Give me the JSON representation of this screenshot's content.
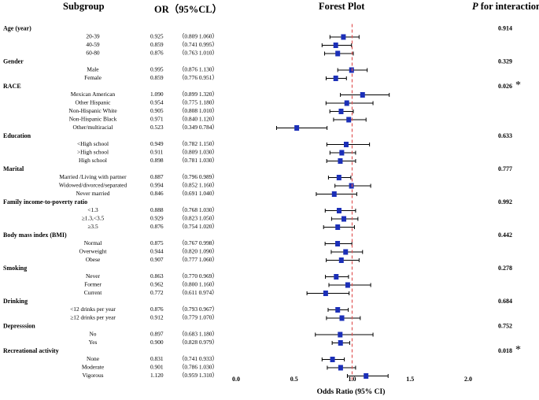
{
  "header": {
    "subgroup": "Subgroup",
    "or_ci": "OR（95%CL）",
    "forest": "Forest Plot",
    "p_symbol": "P",
    "p_rest": "for interaction"
  },
  "chart_data": {
    "type": "forest",
    "xlabel": "Odds Ratio (95% CI)",
    "xlim": [
      0.0,
      2.0
    ],
    "ticks": [
      "0.0",
      "0.5",
      "1.0",
      "1.5",
      "2.0"
    ],
    "reference_line": 1.0,
    "groups": [
      {
        "name": "Age (year)",
        "p": "0.914",
        "star": "",
        "rows": [
          {
            "label": "20-39",
            "or": "0.925",
            "ci": "（0.809  1.060）",
            "est": 0.925,
            "lo": 0.809,
            "hi": 1.06
          },
          {
            "label": "40-59",
            "or": "0.859",
            "ci": "（0.741  0.995）",
            "est": 0.859,
            "lo": 0.741,
            "hi": 0.995
          },
          {
            "label": "60-80",
            "or": "0.876",
            "ci": "（0.763  1.010）",
            "est": 0.876,
            "lo": 0.763,
            "hi": 1.01
          }
        ]
      },
      {
        "name": "Gender",
        "p": "0.329",
        "star": "",
        "rows": [
          {
            "label": "Male",
            "or": "0.995",
            "ci": "（0.876  1.130）",
            "est": 0.995,
            "lo": 0.876,
            "hi": 1.13
          },
          {
            "label": "Female",
            "or": "0.859",
            "ci": "（0.776  0.951）",
            "est": 0.859,
            "lo": 0.776,
            "hi": 0.951
          }
        ]
      },
      {
        "name": "RACE",
        "p": "0.026",
        "star": "*",
        "rows": [
          {
            "label": "Mexican American",
            "or": "1.090",
            "ci": "（0.899  1.320）",
            "est": 1.09,
            "lo": 0.899,
            "hi": 1.32
          },
          {
            "label": "Other Hispanic",
            "or": "0.954",
            "ci": "（0.775  1.180）",
            "est": 0.954,
            "lo": 0.775,
            "hi": 1.18
          },
          {
            "label": "Non-Hispanic White",
            "or": "0.905",
            "ci": "（0.808  1.010）",
            "est": 0.905,
            "lo": 0.808,
            "hi": 1.01
          },
          {
            "label": "Non-Hispanic Black",
            "or": "0.971",
            "ci": "（0.840  1.120）",
            "est": 0.971,
            "lo": 0.84,
            "hi": 1.12
          },
          {
            "label": "Other/multiracial",
            "or": "0.523",
            "ci": "（0.349  0.784）",
            "est": 0.523,
            "lo": 0.349,
            "hi": 0.784
          }
        ]
      },
      {
        "name": "Education",
        "p": "0.633",
        "star": "",
        "rows": [
          {
            "label": "<High school",
            "or": "0.949",
            "ci": "（0.782  1.150）",
            "est": 0.949,
            "lo": 0.782,
            "hi": 1.15
          },
          {
            "label": ">High school",
            "or": "0.911",
            "ci": "（0.809  1.030）",
            "est": 0.911,
            "lo": 0.809,
            "hi": 1.03
          },
          {
            "label": "High school",
            "or": "0.898",
            "ci": "（0.781  1.030）",
            "est": 0.898,
            "lo": 0.781,
            "hi": 1.03
          }
        ]
      },
      {
        "name": "Marital",
        "p": "0.777",
        "star": "",
        "rows": [
          {
            "label": "Married /Living with partner",
            "or": "0.887",
            "ci": "（0.796  0.989）",
            "est": 0.887,
            "lo": 0.796,
            "hi": 0.989
          },
          {
            "label": "Widowed/divorced/separated",
            "or": "0.994",
            "ci": "（0.852  1.160）",
            "est": 0.994,
            "lo": 0.852,
            "hi": 1.16
          },
          {
            "label": "Never married",
            "or": "0.846",
            "ci": "（0.691  1.040）",
            "est": 0.846,
            "lo": 0.691,
            "hi": 1.04
          }
        ]
      },
      {
        "name": "Family income-to-poverty ratio",
        "p": "0.992",
        "star": "",
        "rows": [
          {
            "label": "<1.3",
            "or": "0.888",
            "ci": "（0.768  1.030）",
            "est": 0.888,
            "lo": 0.768,
            "hi": 1.03
          },
          {
            "label": "≥1.3,<3.5",
            "or": "0.929",
            "ci": "（0.823  1.050）",
            "est": 0.929,
            "lo": 0.823,
            "hi": 1.05
          },
          {
            "label": "≥3.5",
            "or": "0.876",
            "ci": "（0.754  1.020）",
            "est": 0.876,
            "lo": 0.754,
            "hi": 1.02
          }
        ]
      },
      {
        "name": "Body mass index (BMI)",
        "p": "0.442",
        "star": "",
        "rows": [
          {
            "label": "Normal",
            "or": "0.875",
            "ci": "（0.767  0.998）",
            "est": 0.875,
            "lo": 0.767,
            "hi": 0.998
          },
          {
            "label": "Overweight",
            "or": "0.944",
            "ci": "（0.820  1.090）",
            "est": 0.944,
            "lo": 0.82,
            "hi": 1.09
          },
          {
            "label": "Obese",
            "or": "0.907",
            "ci": "（0.777  1.060）",
            "est": 0.907,
            "lo": 0.777,
            "hi": 1.06
          }
        ]
      },
      {
        "name": "Smoking",
        "p": "0.278",
        "star": "",
        "rows": [
          {
            "label": "Never",
            "or": "0.863",
            "ci": "（0.770  0.969）",
            "est": 0.863,
            "lo": 0.77,
            "hi": 0.969
          },
          {
            "label": "Former",
            "or": "0.962",
            "ci": "（0.800  1.160）",
            "est": 0.962,
            "lo": 0.8,
            "hi": 1.16
          },
          {
            "label": "Current",
            "or": "0.772",
            "ci": "（0.611  0.974）",
            "est": 0.772,
            "lo": 0.611,
            "hi": 0.974
          }
        ]
      },
      {
        "name": "Drinking",
        "p": "0.684",
        "star": "",
        "rows": [
          {
            "label": "<12 drinks per year",
            "or": "0.876",
            "ci": "（0.793  0.967）",
            "est": 0.876,
            "lo": 0.793,
            "hi": 0.967
          },
          {
            "label": "≥12 drinks per year",
            "or": "0.912",
            "ci": "（0.779  1.070）",
            "est": 0.912,
            "lo": 0.779,
            "hi": 1.07
          }
        ]
      },
      {
        "name": "Depresssion",
        "p": "0.752",
        "star": "",
        "rows": [
          {
            "label": "No",
            "or": "0.897",
            "ci": "（0.683  1.180）",
            "est": 0.897,
            "lo": 0.683,
            "hi": 1.18
          },
          {
            "label": "Yes",
            "or": "0.900",
            "ci": "（0.828  0.979）",
            "est": 0.9,
            "lo": 0.828,
            "hi": 0.979
          }
        ]
      },
      {
        "name": "Recreational activity",
        "p": "0.018",
        "star": "*",
        "rows": [
          {
            "label": "None",
            "or": "0.831",
            "ci": "（0.741  0.933）",
            "est": 0.831,
            "lo": 0.741,
            "hi": 0.933
          },
          {
            "label": "Moderate",
            "or": "0.901",
            "ci": "（0.786  1.030）",
            "est": 0.901,
            "lo": 0.786,
            "hi": 1.03
          },
          {
            "label": "Vigorous",
            "or": "1.120",
            "ci": "（0.959  1.310）",
            "est": 1.12,
            "lo": 0.959,
            "hi": 1.31
          }
        ]
      }
    ],
    "colors": {
      "marker": "#1b2fb8",
      "ci_line": "#000000",
      "reference": "#e05555"
    }
  }
}
